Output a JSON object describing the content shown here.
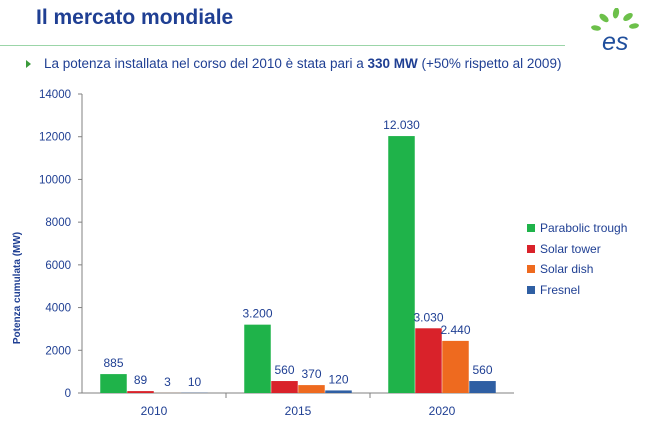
{
  "page": {
    "title": "Il mercato mondiale",
    "logo_text": "es",
    "bullet": {
      "before": "La potenza installata nel corso del 2010 è stata pari a ",
      "bold": "330 MW",
      "after": " (+50% rispetto al 2009)"
    }
  },
  "colors": {
    "title": "#1f3f93",
    "rule": "#9bd5a8",
    "logo_green": "#6cc04a",
    "logo_blue": "#1f4e9c"
  },
  "chart_data": {
    "type": "bar",
    "categories": [
      "2010",
      "2015",
      "2020"
    ],
    "series": [
      {
        "name": "Parabolic trough",
        "color": "#1fb34a",
        "values": [
          885,
          3200,
          12030
        ],
        "labels": [
          "885",
          "3.200",
          "12.030"
        ]
      },
      {
        "name": "Solar tower",
        "color": "#d9222a",
        "values": [
          89,
          560,
          3030
        ],
        "labels": [
          "89",
          "560",
          "3.030"
        ]
      },
      {
        "name": "Solar dish",
        "color": "#ee6a1f",
        "values": [
          3,
          370,
          2440
        ],
        "labels": [
          "3",
          "370",
          "2.440"
        ]
      },
      {
        "name": "Fresnel",
        "color": "#2f5fa3",
        "values": [
          10,
          120,
          560
        ],
        "labels": [
          "10",
          "120",
          "560"
        ]
      }
    ],
    "ylabel": "Potenza cumulata (MW)",
    "ylim": [
      0,
      14000
    ],
    "yticks": [
      "0",
      "2000",
      "4000",
      "6000",
      "8000",
      "10000",
      "12000",
      "14000"
    ],
    "grid": false,
    "legend": "right"
  }
}
